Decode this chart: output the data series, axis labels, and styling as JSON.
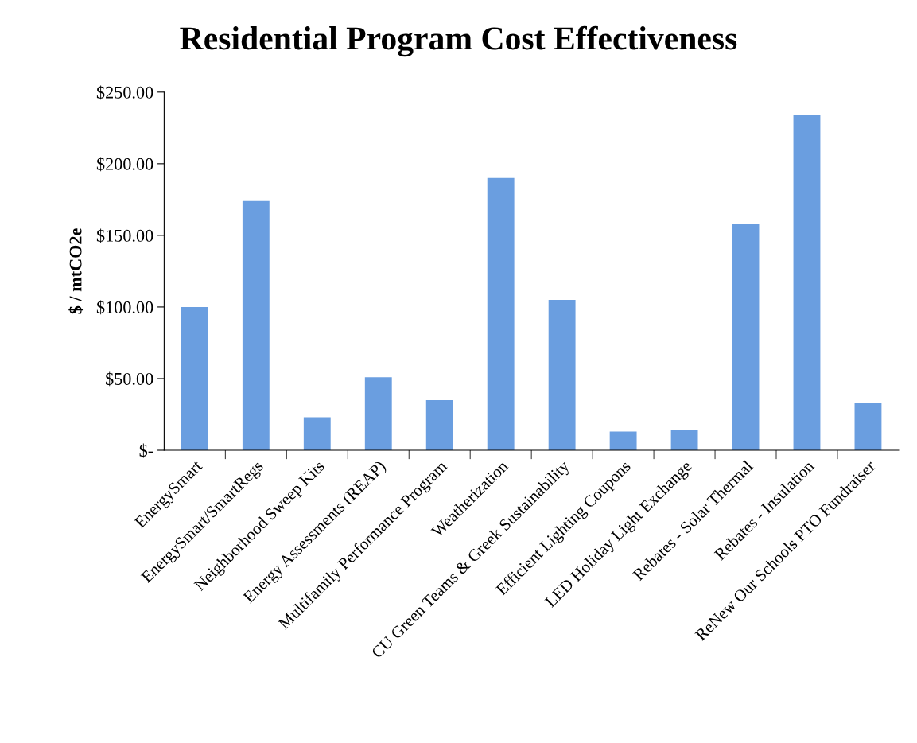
{
  "chart_data": {
    "type": "bar",
    "title": "Residential Program Cost Effectiveness",
    "ylabel": "$ / mtCO2e",
    "categories": [
      "EnergySmart",
      "EnergySmart/SmartRegs",
      "Neighborhood Sweep Kits",
      "Energy Assessments (REAP)",
      "Multifamily Performance Program",
      "Weatherization",
      "CU Green Teams & Greek Sustainability",
      "Efficient Lighting Coupons",
      "LED Holiday Light Exchange",
      "Rebates - Solar Thermal",
      "Rebates - Insulation",
      "ReNew Our Schools PTO Fundraiser"
    ],
    "values": [
      100,
      174,
      23,
      51,
      35,
      190,
      105,
      13,
      14,
      158,
      234,
      33
    ],
    "color": "#6a9ee0",
    "ylim": [
      0,
      250
    ],
    "yticks": [
      {
        "value": 0,
        "label": "$-"
      },
      {
        "value": 50,
        "label": "$50.00"
      },
      {
        "value": 100,
        "label": "$100.00"
      },
      {
        "value": 150,
        "label": "$150.00"
      },
      {
        "value": 200,
        "label": "$200.00"
      },
      {
        "value": 250,
        "label": "$250.00"
      }
    ],
    "grid": false,
    "legend": false
  }
}
